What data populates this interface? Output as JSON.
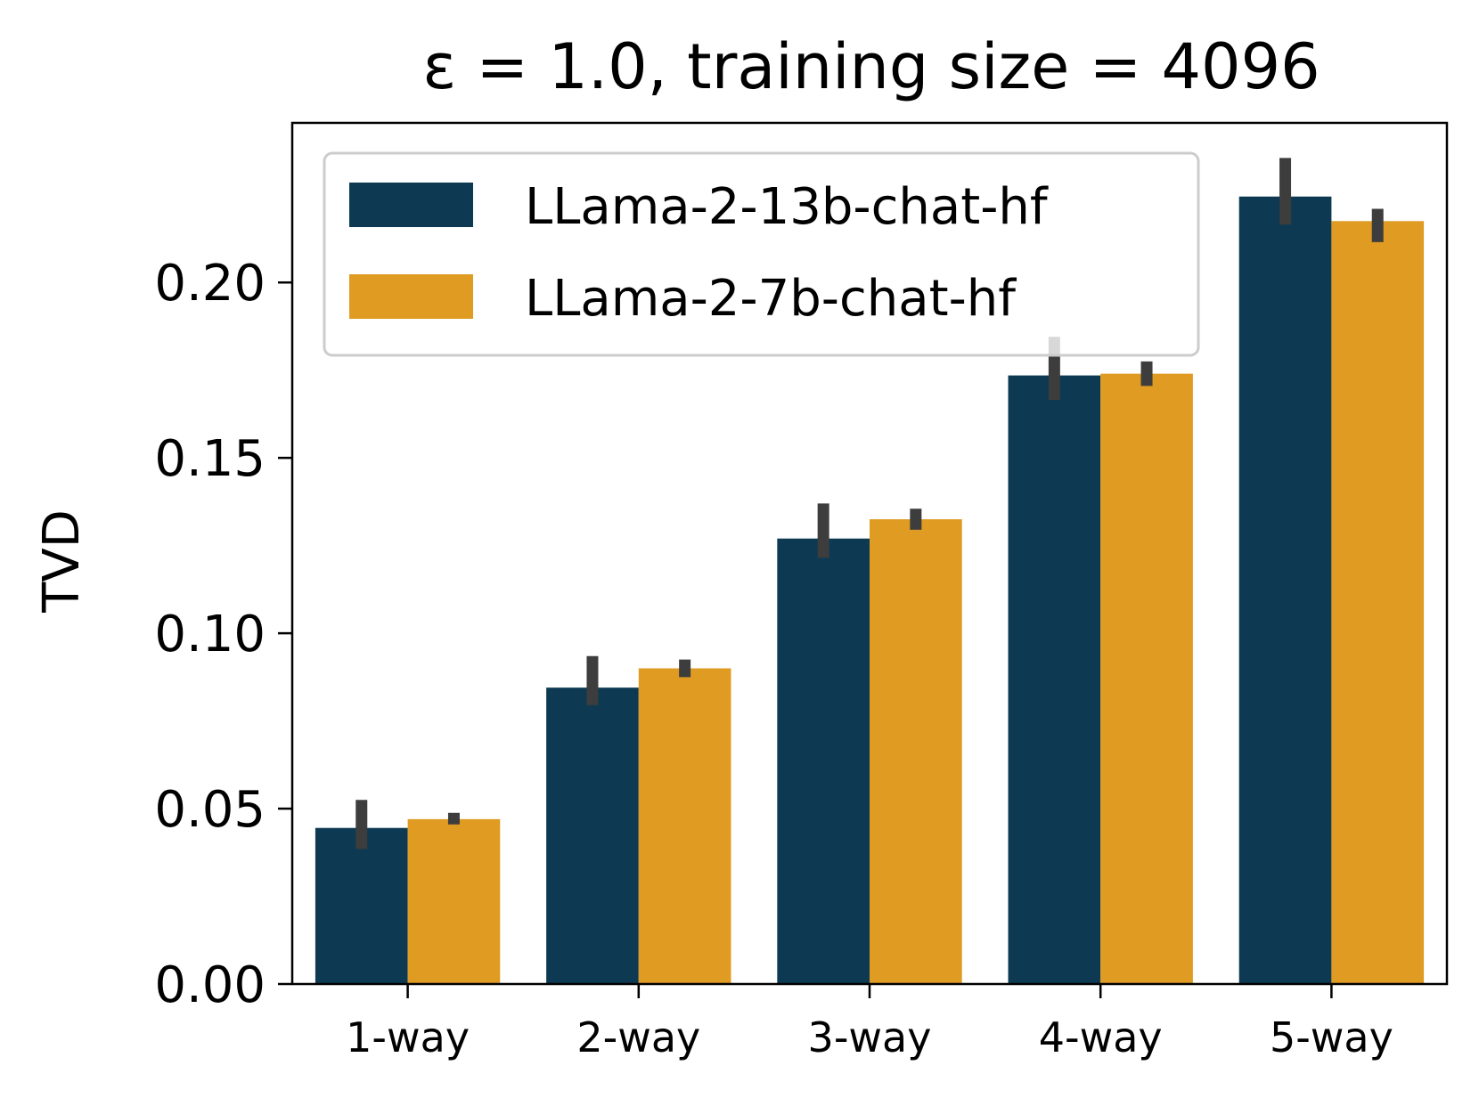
{
  "chart_data": {
    "type": "bar",
    "title": "ε = 1.0, training size = 4096",
    "xlabel": "",
    "ylabel": "TVD",
    "categories": [
      "1-way",
      "2-way",
      "3-way",
      "4-way",
      "5-way"
    ],
    "ylim": [
      0,
      0.2455
    ],
    "yticks": [
      0.0,
      0.05,
      0.1,
      0.15,
      0.2
    ],
    "ytick_labels": [
      "0.00",
      "0.05",
      "0.10",
      "0.15",
      "0.20"
    ],
    "grid": false,
    "legend_position": "top-left",
    "error_bar_color": "#3d3d3d",
    "series": [
      {
        "name": "LLama-2-13b-chat-hf",
        "color": "#0d3a52",
        "values": [
          0.0445,
          0.0845,
          0.127,
          0.1735,
          0.2245
        ],
        "err_low": [
          0.0385,
          0.0795,
          0.1215,
          0.1665,
          0.2165
        ],
        "err_high": [
          0.0525,
          0.0935,
          0.137,
          0.1845,
          0.2355
        ]
      },
      {
        "name": "LLama-2-7b-chat-hf",
        "color": "#df9b22",
        "values": [
          0.047,
          0.09,
          0.1325,
          0.174,
          0.2175
        ],
        "err_low": [
          0.0455,
          0.0875,
          0.1295,
          0.1705,
          0.2115
        ],
        "err_high": [
          0.0488,
          0.0925,
          0.1355,
          0.1775,
          0.221
        ]
      }
    ]
  }
}
